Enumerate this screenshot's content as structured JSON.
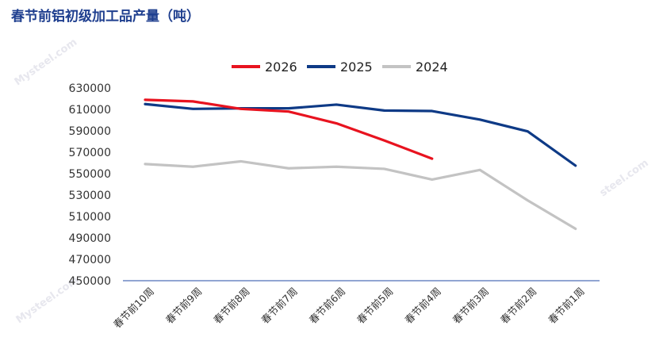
{
  "chart_data": {
    "type": "line",
    "title": "春节前铝初级加工品产量（吨）",
    "categories": [
      "春节前10周",
      "春节前9周",
      "春节前8周",
      "春节前7周",
      "春节前6周",
      "春节前5周",
      "春节前4周",
      "春节前3周",
      "春节前2周",
      "春节前1周"
    ],
    "yticks": [
      "630000",
      "610000",
      "590000",
      "570000",
      "550000",
      "530000",
      "510000",
      "490000",
      "470000",
      "450000"
    ],
    "ylim": [
      450000,
      630000
    ],
    "series": [
      {
        "name": "2026",
        "color": "#e8131f",
        "values": [
          619000,
          617500,
          610500,
          608000,
          597000,
          581000,
          564000,
          null,
          null,
          null
        ]
      },
      {
        "name": "2025",
        "color": "#0e3a86",
        "values": [
          615000,
          610500,
          611000,
          611000,
          614500,
          609000,
          608500,
          600500,
          589500,
          557500
        ]
      },
      {
        "name": "2024",
        "color": "#c3c3c3",
        "values": [
          559000,
          556500,
          561500,
          555000,
          556500,
          554500,
          544500,
          553500,
          525000,
          498500
        ]
      }
    ]
  }
}
